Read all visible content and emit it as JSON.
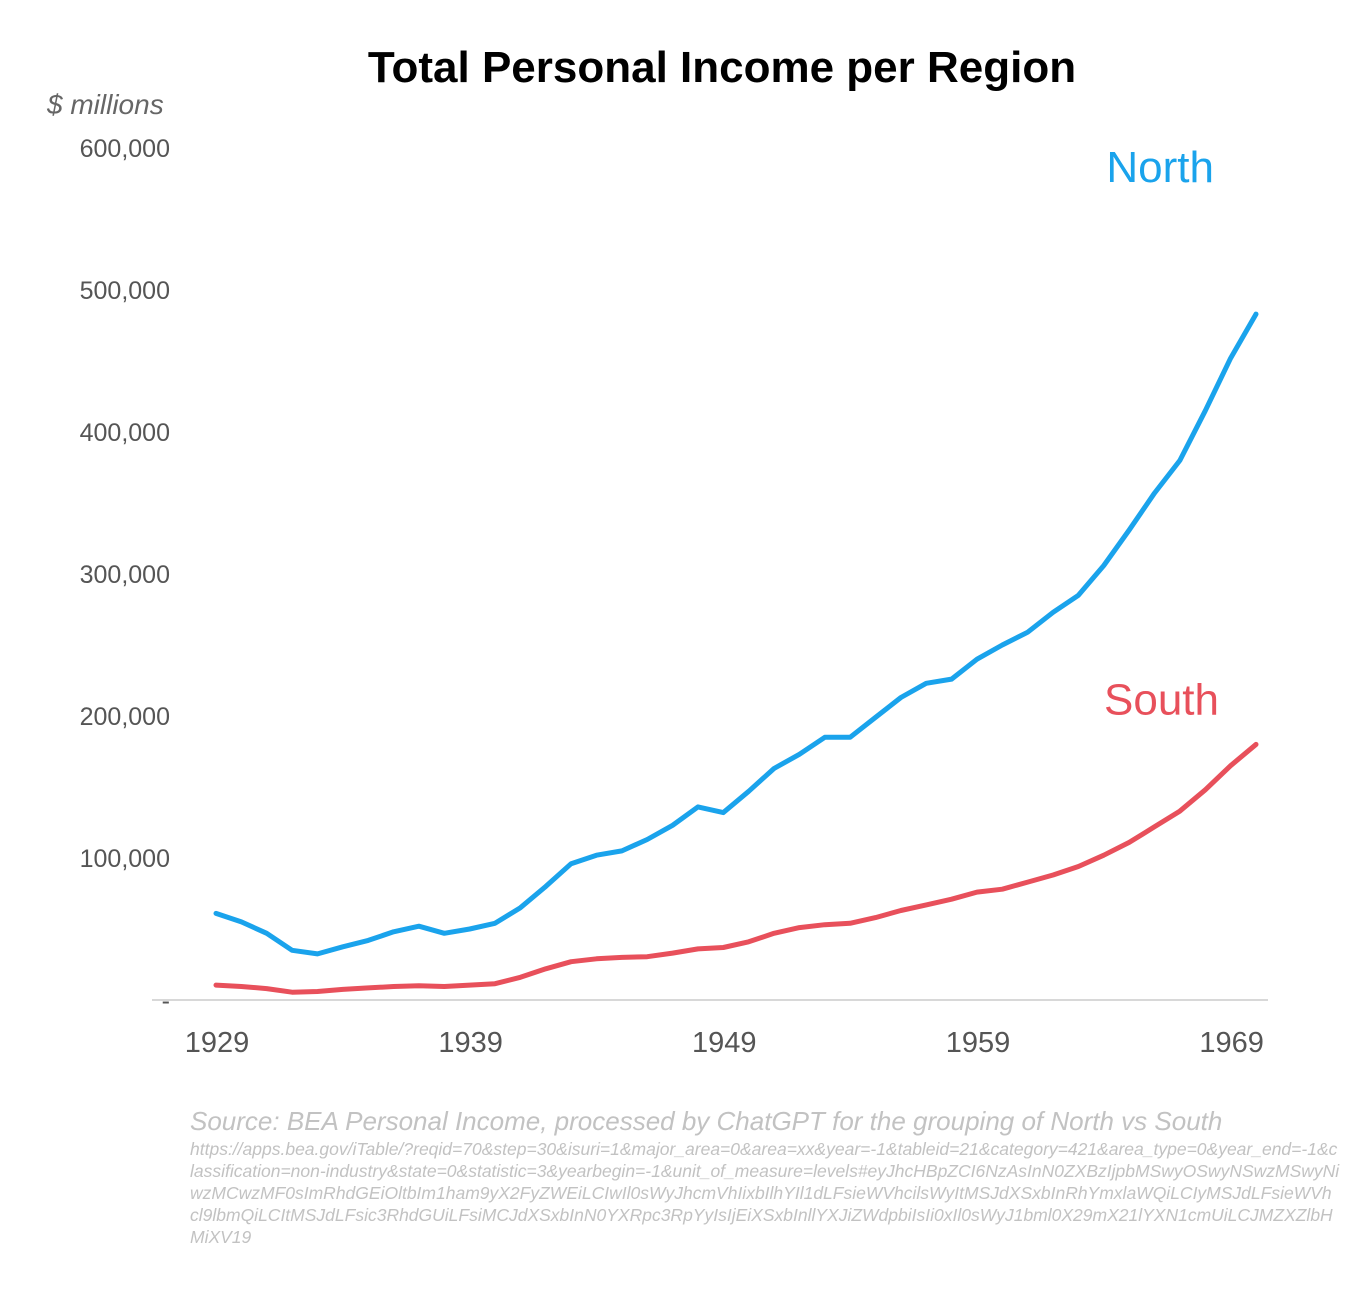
{
  "chart_data": {
    "type": "line",
    "title": "Total Personal Income per Region",
    "ylabel": "$ millions",
    "xlabel": "",
    "ylim": [
      0,
      600000
    ],
    "xlim": [
      1929,
      1970
    ],
    "yticks": [
      0,
      100000,
      200000,
      300000,
      400000,
      500000,
      600000
    ],
    "ytick_labels": [
      "-",
      "100,000",
      "200,000",
      "300,000",
      "400,000",
      "500,000",
      "600,000"
    ],
    "xticks": [
      1929,
      1939,
      1949,
      1959,
      1969
    ],
    "xtick_labels": [
      "1929",
      "1939",
      "1949",
      "1959",
      "1969"
    ],
    "grid": false,
    "x": [
      1929,
      1930,
      1931,
      1932,
      1933,
      1934,
      1935,
      1936,
      1937,
      1938,
      1939,
      1940,
      1941,
      1942,
      1943,
      1944,
      1945,
      1946,
      1947,
      1948,
      1949,
      1950,
      1951,
      1952,
      1953,
      1954,
      1955,
      1956,
      1957,
      1958,
      1959,
      1960,
      1961,
      1962,
      1963,
      1964,
      1965,
      1966,
      1967,
      1968,
      1969,
      1970
    ],
    "series": [
      {
        "name": "North",
        "color": "#1aa3ec",
        "values": [
          61000,
          55000,
          47000,
          35000,
          32500,
          37500,
          42000,
          48000,
          52000,
          47000,
          50000,
          54000,
          65000,
          80000,
          96000,
          102000,
          105000,
          113000,
          123000,
          136000,
          132000,
          147000,
          163000,
          173000,
          185000,
          185000,
          199000,
          213000,
          223000,
          226000,
          240000,
          250000,
          259000,
          273000,
          285000,
          306000,
          331000,
          357000,
          380000,
          415000,
          452000,
          483000
        ]
      },
      {
        "name": "South",
        "color": "#e8505b",
        "values": [
          10500,
          9500,
          8000,
          5500,
          6000,
          7500,
          8500,
          9500,
          10000,
          9500,
          10500,
          11500,
          16000,
          22000,
          27000,
          29000,
          30000,
          30500,
          33000,
          36000,
          37000,
          41000,
          47000,
          51000,
          53000,
          54000,
          58000,
          63000,
          67000,
          71000,
          76000,
          78000,
          83000,
          88000,
          94000,
          102000,
          111000,
          122000,
          133000,
          148000,
          165000,
          180000
        ]
      }
    ]
  },
  "source": {
    "line": "Source: BEA Personal Income, processed by ChatGPT for the grouping of North vs South",
    "url": "https://apps.bea.gov/iTable/?reqid=70&step=30&isuri=1&major_area=0&area=xx&year=-1&tableid=21&category=421&area_type=0&year_end=-1&classification=non-industry&state=0&statistic=3&yearbegin=-1&unit_of_measure=levels#eyJhcHBpZCI6NzAsInN0ZXBzIjpbMSwyOSwyNSwzMSwyNiwzMCwzMF0sImRhdGEiOltbIm1ham9yX2FyZWEiLCIwIl0sWyJhcmVhIixbIlhYIl1dLFsieWVhcilsWyItMSJdXSxbInRhYmxlaWQiLCIyMSJdLFsieWVhcl9lbmQiLCItMSJdLFsic3RhdGUiLFsiMCJdXSxbInN0YXRpc3RpYyIsIjEiXSxbInllYXJiZWdpbiIsIi0xIl0sWyJ1bml0X29mX21lYXN1cmUiLCJMZXZlbHMiXV19"
  }
}
